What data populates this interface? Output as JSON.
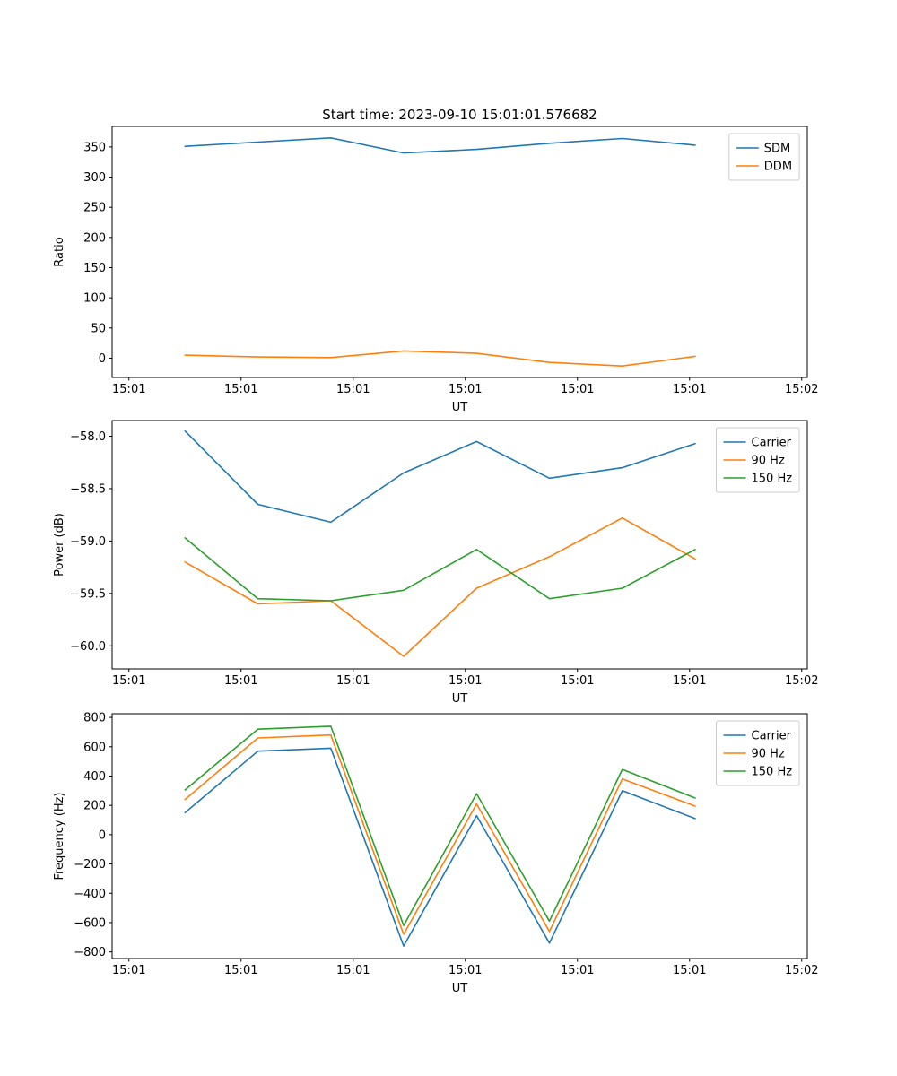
{
  "figure": {
    "title": "Start time: 2023-09-10 15:01:01.576682",
    "background": "#ffffff"
  },
  "colors": {
    "blue": "#1f77b4",
    "orange": "#ff7f0e",
    "green": "#2ca02c",
    "legend_border": "#cccccc",
    "axis": "#000000"
  },
  "chart_data": [
    {
      "type": "line",
      "title": "Start time: 2023-09-10 15:01:01.576682",
      "xlabel": "UT",
      "ylabel": "Ratio",
      "grid": false,
      "legend_position": "upper right",
      "xlim": [
        -1.5,
        60.5
      ],
      "ylim": [
        -32,
        384
      ],
      "xticks": [
        0,
        10,
        20,
        30,
        40,
        50,
        60
      ],
      "xtick_labels": [
        "15:01",
        "15:01",
        "15:01",
        "15:01",
        "15:01",
        "15:01",
        "15:02"
      ],
      "yticks": [
        0,
        50,
        100,
        150,
        200,
        250,
        300,
        350
      ],
      "ytick_labels": [
        "0",
        "50",
        "100",
        "150",
        "200",
        "250",
        "300",
        "350"
      ],
      "x_seconds": [
        5,
        11.5,
        18,
        24.5,
        31,
        37.5,
        44,
        50.5
      ],
      "series": [
        {
          "name": "SDM",
          "color": "#1f77b4",
          "values": [
            351,
            358,
            365,
            340,
            346,
            356,
            364,
            353
          ]
        },
        {
          "name": "DDM",
          "color": "#ff7f0e",
          "values": [
            5,
            2,
            1,
            12,
            8,
            -7,
            -13,
            3
          ]
        }
      ]
    },
    {
      "type": "line",
      "title": "",
      "xlabel": "UT",
      "ylabel": "Power (dB)",
      "grid": false,
      "legend_position": "upper right",
      "xlim": [
        -1.5,
        60.5
      ],
      "ylim": [
        -60.22,
        -57.85
      ],
      "xticks": [
        0,
        10,
        20,
        30,
        40,
        50,
        60
      ],
      "xtick_labels": [
        "15:01",
        "15:01",
        "15:01",
        "15:01",
        "15:01",
        "15:01",
        "15:02"
      ],
      "yticks": [
        -60.0,
        -59.5,
        -59.0,
        -58.5,
        -58.0
      ],
      "ytick_labels": [
        "−60.0",
        "−59.5",
        "−59.0",
        "−58.5",
        "−58.0"
      ],
      "x_seconds": [
        5,
        11.5,
        18,
        24.5,
        31,
        37.5,
        44,
        50.5
      ],
      "series": [
        {
          "name": "Carrier",
          "color": "#1f77b4",
          "values": [
            -57.95,
            -58.65,
            -58.82,
            -58.35,
            -58.05,
            -58.4,
            -58.3,
            -58.07
          ]
        },
        {
          "name": "90 Hz",
          "color": "#ff7f0e",
          "values": [
            -59.2,
            -59.6,
            -59.57,
            -60.1,
            -59.45,
            -59.15,
            -58.78,
            -59.17
          ]
        },
        {
          "name": "150 Hz",
          "color": "#2ca02c",
          "values": [
            -58.97,
            -59.55,
            -59.57,
            -59.47,
            -59.08,
            -59.55,
            -59.45,
            -59.08
          ]
        }
      ]
    },
    {
      "type": "line",
      "title": "",
      "xlabel": "UT",
      "ylabel": "Frequency (Hz)",
      "grid": false,
      "legend_position": "upper right",
      "xlim": [
        -1.5,
        60.5
      ],
      "ylim": [
        -845,
        825
      ],
      "xticks": [
        0,
        10,
        20,
        30,
        40,
        50,
        60
      ],
      "xtick_labels": [
        "15:01",
        "15:01",
        "15:01",
        "15:01",
        "15:01",
        "15:01",
        "15:02"
      ],
      "yticks": [
        -800,
        -600,
        -400,
        -200,
        0,
        200,
        400,
        600,
        800
      ],
      "ytick_labels": [
        "−800",
        "−600",
        "−400",
        "−200",
        "0",
        "200",
        "400",
        "600",
        "800"
      ],
      "x_seconds": [
        5,
        11.5,
        18,
        24.5,
        31,
        37.5,
        44,
        50.5
      ],
      "series": [
        {
          "name": "Carrier",
          "color": "#1f77b4",
          "values": [
            150,
            570,
            590,
            -760,
            130,
            -740,
            300,
            110
          ]
        },
        {
          "name": "90 Hz",
          "color": "#ff7f0e",
          "values": [
            240,
            660,
            680,
            -680,
            210,
            -660,
            380,
            195
          ]
        },
        {
          "name": "150 Hz",
          "color": "#2ca02c",
          "values": [
            305,
            720,
            740,
            -620,
            280,
            -590,
            445,
            250
          ]
        }
      ]
    }
  ]
}
